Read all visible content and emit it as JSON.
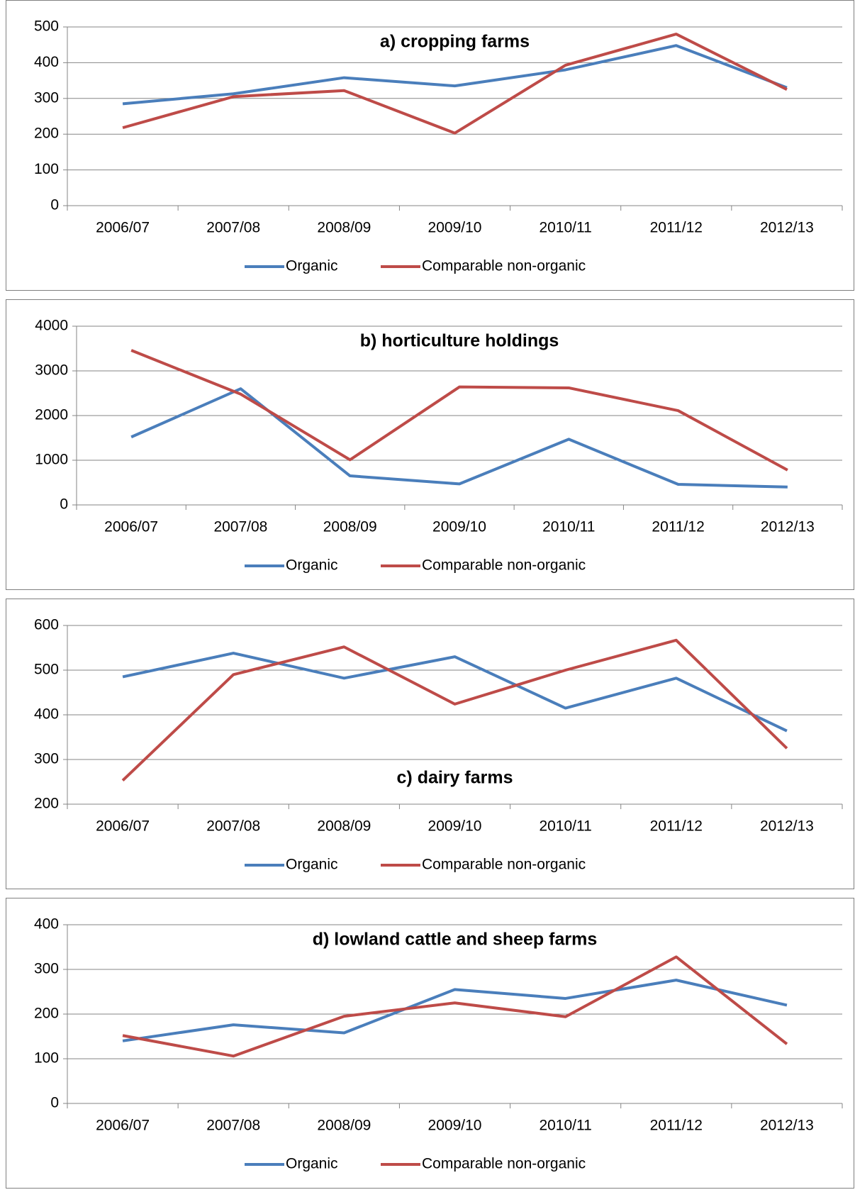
{
  "chart_data": [
    {
      "type": "line",
      "title": "a) cropping farms",
      "title_position": "top",
      "categories": [
        "2006/07",
        "2007/08",
        "2008/09",
        "2009/10",
        "2010/11",
        "2011/12",
        "2012/13"
      ],
      "series": [
        {
          "name": "Organic",
          "color": "#4a7ebb",
          "values": [
            285,
            313,
            358,
            335,
            380,
            448,
            330
          ]
        },
        {
          "name": "Comparable non-organic",
          "color": "#be4b48",
          "values": [
            218,
            305,
            322,
            203,
            393,
            480,
            325
          ]
        }
      ],
      "ylim": [
        0,
        500
      ],
      "yticks": [
        0,
        100,
        200,
        300,
        400,
        500
      ],
      "grid": true,
      "legend": "bottom"
    },
    {
      "type": "line",
      "title": "b) horticulture holdings",
      "title_position": "top",
      "categories": [
        "2006/07",
        "2007/08",
        "2008/09",
        "2009/10",
        "2010/11",
        "2011/12",
        "2012/13"
      ],
      "series": [
        {
          "name": "Organic",
          "color": "#4a7ebb",
          "values": [
            1520,
            2600,
            650,
            470,
            1470,
            460,
            400
          ]
        },
        {
          "name": "Comparable non-organic",
          "color": "#be4b48",
          "values": [
            3460,
            2480,
            1010,
            2640,
            2620,
            2110,
            780
          ]
        }
      ],
      "ylim": [
        0,
        4000
      ],
      "yticks": [
        0,
        1000,
        2000,
        3000,
        4000
      ],
      "grid": true,
      "legend": "bottom"
    },
    {
      "type": "line",
      "title": "c) dairy farms",
      "title_position": "bottom",
      "categories": [
        "2006/07",
        "2007/08",
        "2008/09",
        "2009/10",
        "2010/11",
        "2011/12",
        "2012/13"
      ],
      "series": [
        {
          "name": "Organic",
          "color": "#4a7ebb",
          "values": [
            485,
            538,
            482,
            530,
            415,
            482,
            364
          ]
        },
        {
          "name": "Comparable non-organic",
          "color": "#be4b48",
          "values": [
            253,
            490,
            552,
            424,
            500,
            567,
            325
          ]
        }
      ],
      "ylim": [
        200,
        600
      ],
      "yticks": [
        200,
        300,
        400,
        500,
        600
      ],
      "grid": true,
      "legend": "bottom"
    },
    {
      "type": "line",
      "title": "d) lowland cattle and sheep farms",
      "title_position": "top",
      "categories": [
        "2006/07",
        "2007/08",
        "2008/09",
        "2009/10",
        "2010/11",
        "2011/12",
        "2012/13"
      ],
      "series": [
        {
          "name": "Organic",
          "color": "#4a7ebb",
          "values": [
            140,
            176,
            158,
            255,
            235,
            276,
            220
          ]
        },
        {
          "name": "Comparable non-organic",
          "color": "#be4b48",
          "values": [
            152,
            106,
            195,
            225,
            194,
            328,
            133
          ]
        }
      ],
      "ylim": [
        0,
        400
      ],
      "yticks": [
        0,
        100,
        200,
        300,
        400
      ],
      "grid": true,
      "legend": "bottom"
    }
  ]
}
